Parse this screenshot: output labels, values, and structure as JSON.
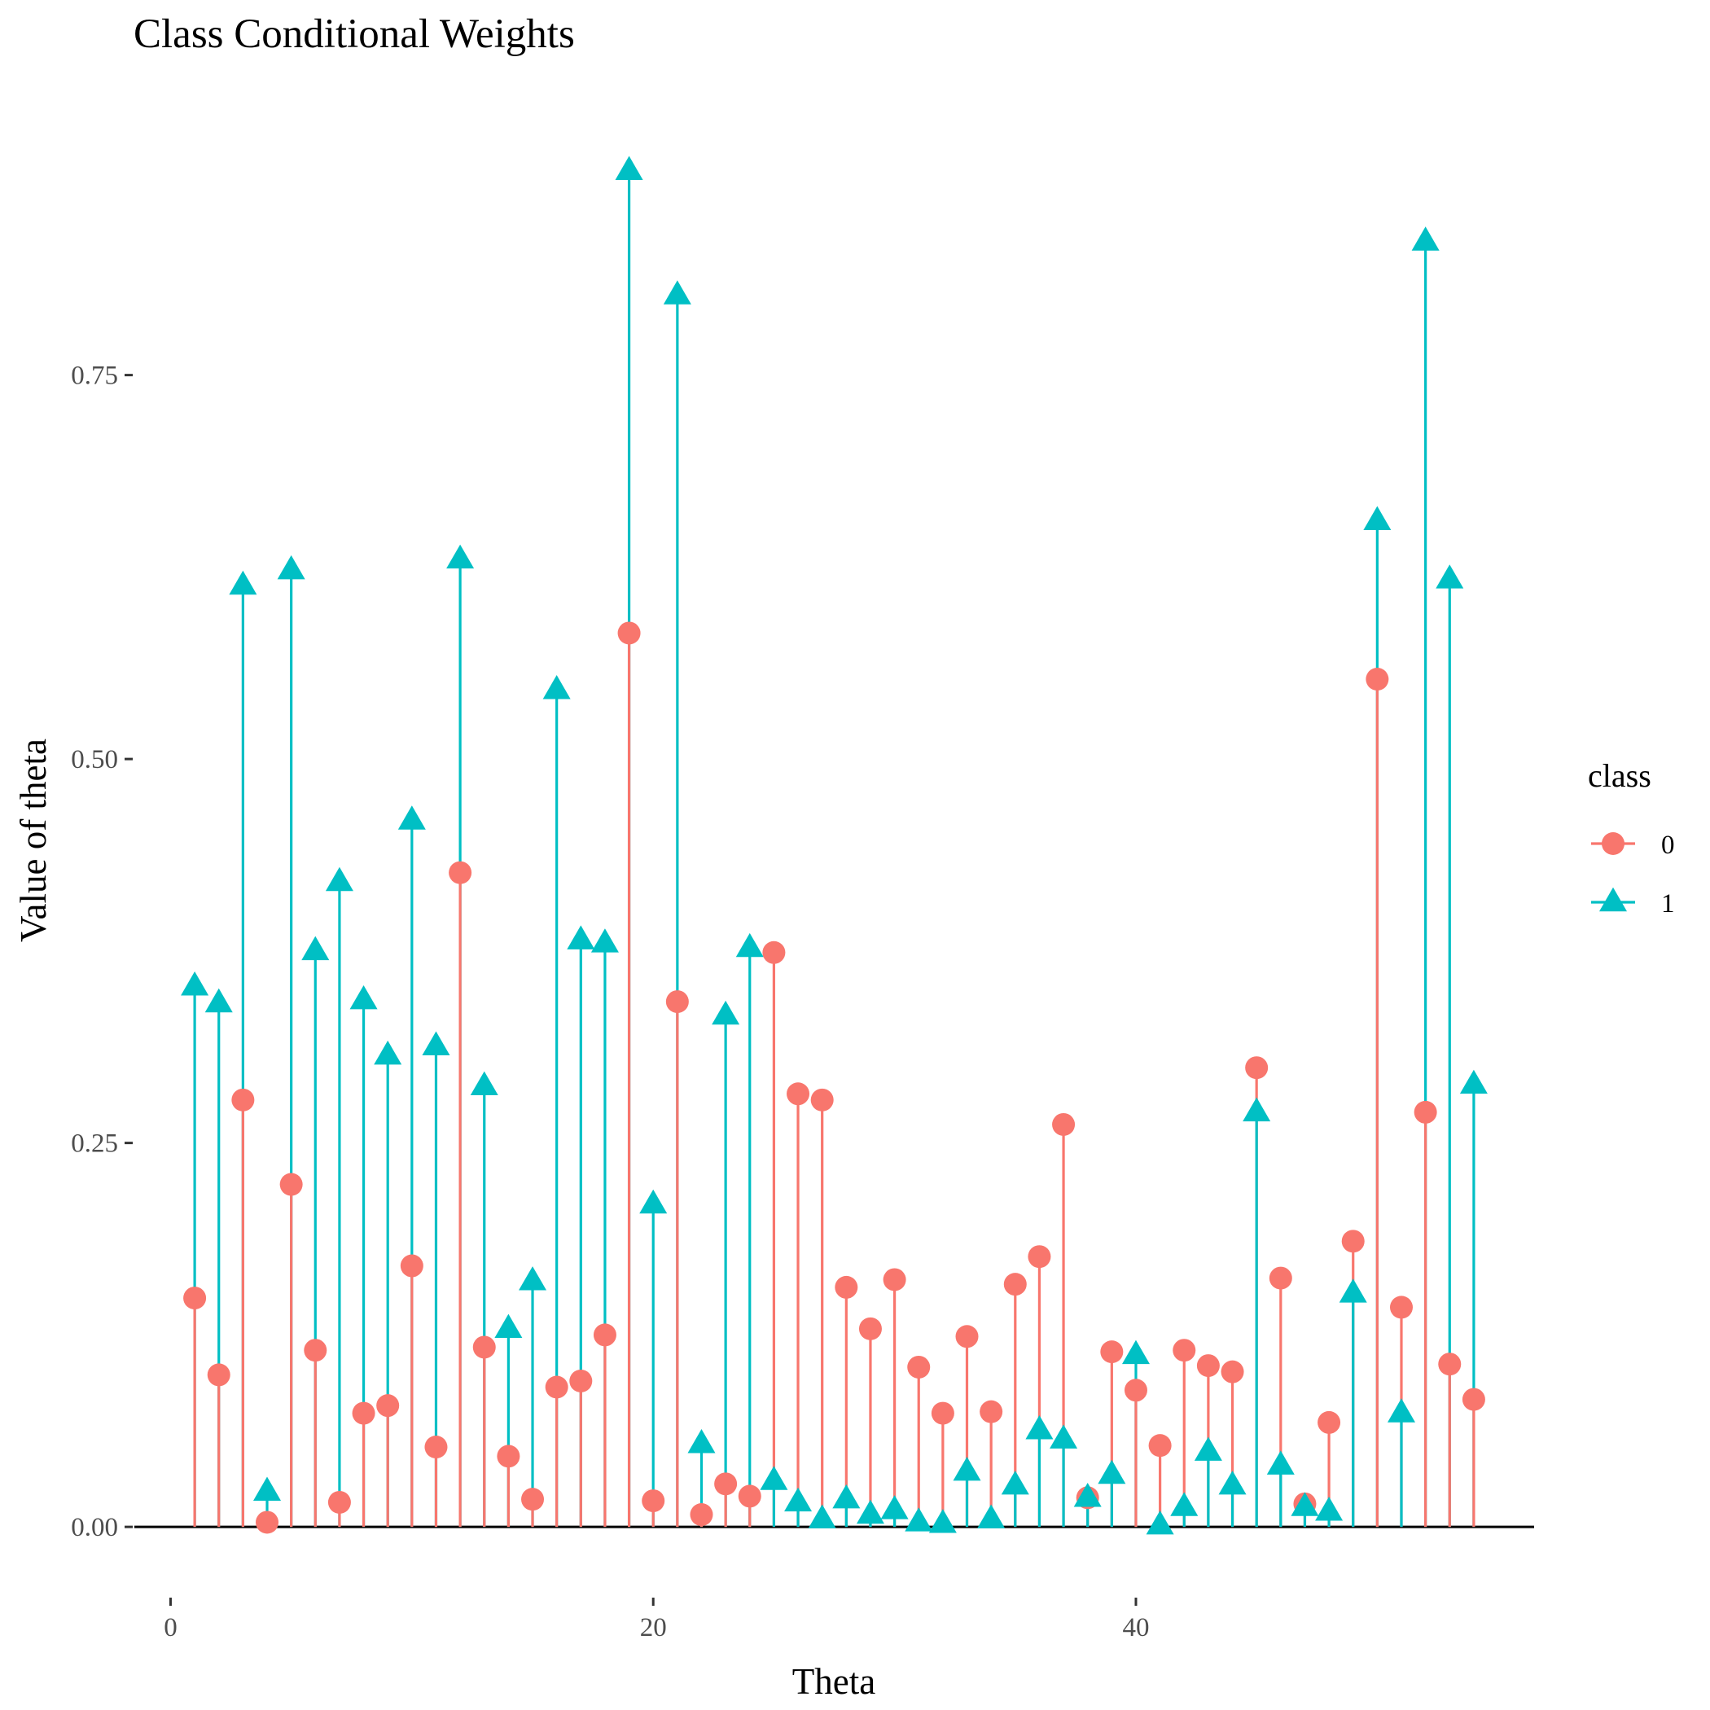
{
  "chart_data": {
    "type": "lollipop",
    "title": "Class Conditional Weights",
    "xlabel": "Theta",
    "ylabel": "Value of theta",
    "xlim": [
      -1.5,
      56.5
    ],
    "ylim": [
      -0.045,
      0.92
    ],
    "x_ticks": [
      0,
      20,
      40
    ],
    "y_ticks": [
      0.0,
      0.25,
      0.5,
      0.75
    ],
    "y_tick_labels": [
      "0.00",
      "0.25",
      "0.50",
      "0.75"
    ],
    "grid": false,
    "legend": {
      "title": "class",
      "placement": "right"
    },
    "x": [
      1,
      2,
      3,
      4,
      5,
      6,
      7,
      8,
      9,
      10,
      11,
      12,
      13,
      14,
      15,
      16,
      17,
      18,
      19,
      20,
      21,
      22,
      23,
      24,
      25,
      26,
      27,
      28,
      29,
      30,
      31,
      32,
      33,
      34,
      35,
      36,
      37,
      38,
      39,
      40,
      41,
      42,
      43,
      44,
      45,
      46,
      47,
      48,
      49,
      50,
      51,
      52,
      53,
      54
    ],
    "series": [
      {
        "name": "0",
        "color": "#F8766D",
        "marker": "circle",
        "values": [
          0.149,
          0.099,
          0.278,
          0.003,
          0.223,
          0.115,
          0.016,
          0.074,
          0.079,
          0.17,
          0.052,
          0.426,
          0.117,
          0.046,
          0.018,
          0.091,
          0.095,
          0.125,
          0.582,
          0.017,
          0.342,
          0.008,
          0.028,
          0.02,
          0.374,
          0.282,
          0.278,
          0.156,
          0.129,
          0.161,
          0.104,
          0.074,
          0.124,
          0.075,
          0.158,
          0.176,
          0.262,
          0.019,
          0.114,
          0.089,
          0.053,
          0.115,
          0.105,
          0.101,
          0.299,
          0.162,
          0.015,
          0.068,
          0.186,
          0.552,
          0.143,
          0.27,
          0.106,
          0.083
        ]
      },
      {
        "name": "1",
        "color": "#00BFC4",
        "marker": "triangle",
        "values": [
          0.352,
          0.341,
          0.613,
          0.023,
          0.623,
          0.375,
          0.42,
          0.343,
          0.307,
          0.46,
          0.313,
          0.63,
          0.287,
          0.129,
          0.16,
          0.545,
          0.382,
          0.38,
          0.883,
          0.21,
          0.802,
          0.054,
          0.333,
          0.377,
          0.03,
          0.016,
          0.005,
          0.018,
          0.008,
          0.011,
          0.003,
          0.002,
          0.036,
          0.005,
          0.027,
          0.063,
          0.057,
          0.019,
          0.034,
          0.112,
          0.001,
          0.013,
          0.049,
          0.027,
          0.27,
          0.04,
          0.013,
          0.01,
          0.152,
          0.655,
          0.074,
          0.837,
          0.617,
          0.288
        ]
      }
    ]
  }
}
